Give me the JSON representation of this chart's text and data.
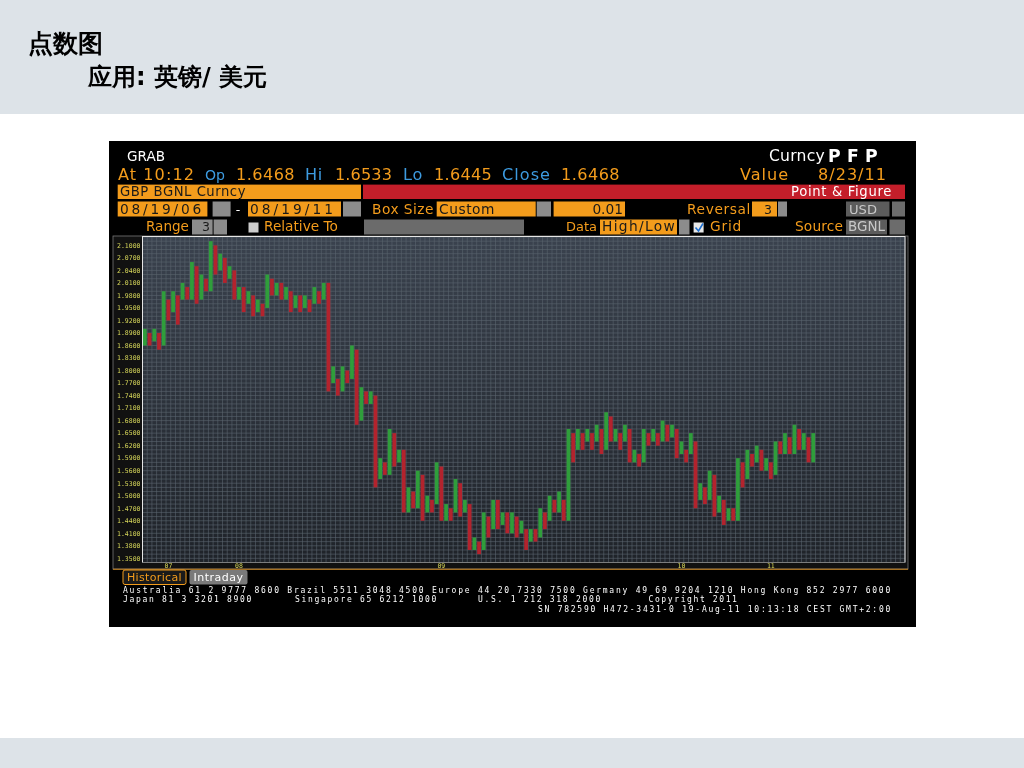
{
  "chart_data": {
    "type": "bar",
    "title": "点数图",
    "subtitle": "应用: 英镑/ 美元",
    "annotations": [
      "GRAB",
      "Curncy",
      "PFP",
      "At 10:12",
      "Op",
      "1.6468",
      "Hi",
      "1.6533",
      "Lo",
      "1.6445",
      "Close",
      "1.6468",
      "Value",
      "8/23/11",
      "GBP BGNL Curncy",
      "Point & Figure",
      "08/19/06",
      "-",
      "08/19/11",
      "Box Size",
      "Custom",
      "0.01",
      "Reversal",
      "3",
      "USD",
      "Range",
      "3",
      "Relative To",
      "Data",
      "High/Low",
      "Grid",
      "Source",
      "BGNL",
      "Historical",
      "Intraday",
      "Australia 61 2 9777 8600 Brazil 5511 3048 4500 Europe 44 20 7330 7500 Germany 49 69 9204 1210 Hong Kong 852 2977 6000",
      "Japan 81 3 3201 8900",
      "Singapore 65 6212 1000",
      "U.S. 1 212 318 2000",
      "Copyright 2011",
      "SN 782590 H472-3431-0 19-Aug-11 10:13:18 CEST GMT+2:00"
    ],
    "categories": [
      null,
      null,
      null,
      null,
      null,
      "07",
      null,
      null,
      null,
      null,
      null,
      null,
      null,
      null,
      null,
      null,
      null,
      null,
      null,
      null,
      "08",
      null,
      null,
      null,
      null,
      null,
      null,
      null,
      null,
      null,
      null,
      null,
      null,
      null,
      null,
      null,
      null,
      null,
      null,
      null,
      null,
      null,
      null,
      null,
      null,
      null,
      null,
      null,
      null,
      null,
      null,
      null,
      null,
      null,
      null,
      null,
      null,
      null,
      null,
      null,
      null,
      null,
      null,
      "09",
      null,
      null,
      null,
      null,
      null,
      null,
      null,
      null,
      null,
      null,
      null,
      null,
      null,
      null,
      null,
      null,
      null,
      null,
      null,
      null,
      null,
      null,
      null,
      null,
      null,
      null,
      null,
      null,
      null,
      null,
      null,
      null,
      null,
      null,
      null,
      null,
      null,
      null,
      null,
      null,
      null,
      null,
      null,
      null,
      null,
      null,
      null,
      null,
      null,
      null,
      "10",
      null,
      null,
      null,
      null,
      null,
      null,
      null,
      null,
      null,
      null,
      null,
      null,
      null,
      null,
      null,
      null,
      null,
      null,
      "11",
      null,
      null,
      null,
      null,
      null,
      null,
      null,
      null,
      null,
      null,
      null,
      null,
      null,
      null,
      null,
      null,
      null,
      null,
      null,
      null,
      null,
      null,
      null,
      null,
      null,
      null,
      null,
      null
    ],
    "base": [
      1.86,
      1.86,
      1.87,
      1.85,
      1.86,
      1.92,
      1.94,
      1.91,
      1.97,
      1.97,
      1.97,
      1.96,
      1.97,
      1.99,
      1.99,
      2.03,
      2.04,
      2.01,
      2.02,
      1.97,
      1.97,
      1.94,
      1.96,
      1.93,
      1.94,
      1.93,
      1.95,
      1.98,
      1.98,
      1.97,
      1.97,
      1.94,
      1.95,
      1.94,
      1.95,
      1.94,
      1.96,
      1.96,
      1.97,
      1.75,
      1.77,
      1.74,
      1.75,
      1.77,
      1.78,
      1.67,
      1.68,
      1.72,
      1.72,
      1.52,
      1.54,
      1.55,
      1.55,
      1.57,
      1.58,
      1.46,
      1.46,
      1.47,
      1.47,
      1.44,
      1.46,
      1.46,
      1.48,
      1.44,
      1.44,
      1.44,
      1.46,
      1.45,
      1.46,
      1.37,
      1.37,
      1.36,
      1.37,
      1.4,
      1.42,
      1.42,
      1.43,
      1.41,
      1.41,
      1.4,
      1.41,
      1.37,
      1.39,
      1.39,
      1.4,
      1.42,
      1.44,
      1.46,
      1.46,
      1.44,
      1.44,
      1.58,
      1.61,
      1.61,
      1.63,
      1.61,
      1.63,
      1.6,
      1.61,
      1.63,
      1.63,
      1.61,
      1.63,
      1.58,
      1.58,
      1.57,
      1.58,
      1.62,
      1.63,
      1.62,
      1.63,
      1.63,
      1.64,
      1.59,
      1.6,
      1.58,
      1.6,
      1.47,
      1.49,
      1.48,
      1.49,
      1.45,
      1.46,
      1.43,
      1.44,
      1.44,
      1.44,
      1.52,
      1.54,
      1.57,
      1.58,
      1.56,
      1.56,
      1.54,
      1.55,
      1.6,
      1.6,
      1.6,
      1.6,
      1.61,
      1.61,
      1.58,
      1.58,
      null,
      null,
      null,
      null,
      null,
      null,
      null,
      null,
      null,
      null,
      null,
      null,
      null,
      null,
      null,
      null,
      null,
      null,
      null
    ],
    "values": [
      0.04,
      0.03,
      0.03,
      0.04,
      0.13,
      0.05,
      0.05,
      0.07,
      0.04,
      0.03,
      0.09,
      0.09,
      0.06,
      0.03,
      0.12,
      0.07,
      0.04,
      0.06,
      0.03,
      0.07,
      0.03,
      0.06,
      0.03,
      0.05,
      0.03,
      0.03,
      0.08,
      0.04,
      0.03,
      0.04,
      0.03,
      0.05,
      0.03,
      0.04,
      0.03,
      0.03,
      0.04,
      0.03,
      0.04,
      0.26,
      0.04,
      0.04,
      0.06,
      0.03,
      0.08,
      0.18,
      0.08,
      0.03,
      0.03,
      0.22,
      0.05,
      0.03,
      0.11,
      0.08,
      0.03,
      0.15,
      0.06,
      0.04,
      0.09,
      0.11,
      0.04,
      0.03,
      0.1,
      0.13,
      0.04,
      0.03,
      0.08,
      0.08,
      0.03,
      0.11,
      0.03,
      0.03,
      0.09,
      0.05,
      0.07,
      0.07,
      0.03,
      0.05,
      0.05,
      0.05,
      0.03,
      0.05,
      0.03,
      0.03,
      0.07,
      0.04,
      0.06,
      0.03,
      0.05,
      0.05,
      0.22,
      0.07,
      0.05,
      0.04,
      0.03,
      0.04,
      0.04,
      0.06,
      0.09,
      0.06,
      0.03,
      0.04,
      0.04,
      0.08,
      0.03,
      0.03,
      0.08,
      0.03,
      0.03,
      0.03,
      0.05,
      0.04,
      0.03,
      0.07,
      0.03,
      0.03,
      0.05,
      0.16,
      0.04,
      0.04,
      0.07,
      0.1,
      0.04,
      0.06,
      0.03,
      0.03,
      0.15,
      0.06,
      0.07,
      0.03,
      0.04,
      0.05,
      0.03,
      0.04,
      0.08,
      0.03,
      0.05,
      0.04,
      0.07,
      0.05,
      0.04,
      0.06,
      0.07,
      null,
      null,
      null,
      null,
      null,
      null,
      null,
      null,
      null,
      null,
      null,
      null,
      null,
      null,
      null,
      null,
      null,
      null,
      null
    ],
    "colors": [
      "#2f9e3b",
      "#b3232d",
      "#2f9e3b",
      "#b3232d",
      "#2f9e3b",
      "#b3232d",
      "#2f9e3b",
      "#b3232d",
      "#2f9e3b",
      "#b3232d",
      "#2f9e3b",
      "#b3232d",
      "#2f9e3b",
      "#b3232d",
      "#2f9e3b",
      "#b3232d",
      "#2f9e3b",
      "#b3232d",
      "#2f9e3b",
      "#b3232d",
      "#2f9e3b",
      "#b3232d",
      "#2f9e3b",
      "#b3232d",
      "#2f9e3b",
      "#b3232d",
      "#2f9e3b",
      "#b3232d",
      "#2f9e3b",
      "#b3232d",
      "#2f9e3b",
      "#b3232d",
      "#2f9e3b",
      "#b3232d",
      "#2f9e3b",
      "#b3232d",
      "#2f9e3b",
      "#b3232d",
      "#2f9e3b",
      "#b3232d",
      "#2f9e3b",
      "#b3232d",
      "#2f9e3b",
      "#b3232d",
      "#2f9e3b",
      "#b3232d",
      "#2f9e3b",
      "#b3232d",
      "#2f9e3b",
      "#b3232d",
      "#2f9e3b",
      "#b3232d",
      "#2f9e3b",
      "#b3232d",
      "#2f9e3b",
      "#b3232d",
      "#2f9e3b",
      "#b3232d",
      "#2f9e3b",
      "#b3232d",
      "#2f9e3b",
      "#b3232d",
      "#2f9e3b",
      "#b3232d",
      "#2f9e3b",
      "#b3232d",
      "#2f9e3b",
      "#b3232d",
      "#2f9e3b",
      "#b3232d",
      "#2f9e3b",
      "#b3232d",
      "#2f9e3b",
      "#b3232d",
      "#2f9e3b",
      "#b3232d",
      "#2f9e3b",
      "#b3232d",
      "#2f9e3b",
      "#b3232d",
      "#2f9e3b",
      "#b3232d",
      "#2f9e3b",
      "#b3232d",
      "#2f9e3b",
      "#b3232d",
      "#2f9e3b",
      "#b3232d",
      "#2f9e3b",
      "#b3232d",
      "#2f9e3b",
      "#b3232d",
      "#2f9e3b",
      "#b3232d",
      "#2f9e3b",
      "#b3232d",
      "#2f9e3b",
      "#b3232d",
      "#2f9e3b",
      "#b3232d",
      "#2f9e3b",
      "#b3232d",
      "#2f9e3b",
      "#b3232d",
      "#2f9e3b",
      "#b3232d",
      "#2f9e3b",
      "#b3232d",
      "#2f9e3b",
      "#b3232d",
      "#2f9e3b",
      "#b3232d",
      "#2f9e3b",
      "#b3232d",
      "#2f9e3b",
      "#b3232d",
      "#2f9e3b",
      "#b3232d",
      "#2f9e3b",
      "#b3232d",
      "#2f9e3b",
      "#b3232d",
      "#2f9e3b",
      "#b3232d",
      "#2f9e3b",
      "#b3232d",
      "#2f9e3b",
      "#b3232d",
      "#2f9e3b",
      "#b3232d",
      "#2f9e3b",
      "#b3232d",
      "#2f9e3b",
      "#b3232d",
      "#2f9e3b",
      "#b3232d",
      "#2f9e3b",
      "#b3232d",
      "#2f9e3b",
      "#b3232d",
      "#2f9e3b",
      "#b3232d",
      "#2f9e3b",
      null,
      null,
      null,
      null,
      null,
      null,
      null,
      null,
      null,
      null,
      null,
      null,
      null,
      null,
      null,
      null,
      null,
      null,
      null
    ],
    "ylim": [
      1.34,
      2.12
    ],
    "yticks": [
      {
        "value": 1.34,
        "label": null
      },
      {
        "value": 1.35,
        "label": "1.3500"
      },
      {
        "value": 1.36,
        "label": null
      },
      {
        "value": 1.37,
        "label": null
      },
      {
        "value": 1.38,
        "label": "1.3800"
      },
      {
        "value": 1.39,
        "label": null
      },
      {
        "value": 1.4,
        "label": null
      },
      {
        "value": 1.41,
        "label": "1.4100"
      },
      {
        "value": 1.42,
        "label": null
      },
      {
        "value": 1.43,
        "label": null
      },
      {
        "value": 1.44,
        "label": "1.4400"
      },
      {
        "value": 1.45,
        "label": null
      },
      {
        "value": 1.46,
        "label": null
      },
      {
        "value": 1.47,
        "label": "1.4700"
      },
      {
        "value": 1.48,
        "label": null
      },
      {
        "value": 1.49,
        "label": null
      },
      {
        "value": 1.5,
        "label": "1.5000"
      },
      {
        "value": 1.51,
        "label": null
      },
      {
        "value": 1.52,
        "label": null
      },
      {
        "value": 1.53,
        "label": "1.5300"
      },
      {
        "value": 1.54,
        "label": null
      },
      {
        "value": 1.55,
        "label": null
      },
      {
        "value": 1.56,
        "label": "1.5600"
      },
      {
        "value": 1.57,
        "label": null
      },
      {
        "value": 1.58,
        "label": null
      },
      {
        "value": 1.59,
        "label": "1.5900"
      },
      {
        "value": 1.6,
        "label": null
      },
      {
        "value": 1.61,
        "label": null
      },
      {
        "value": 1.62,
        "label": "1.6200"
      },
      {
        "value": 1.63,
        "label": null
      },
      {
        "value": 1.64,
        "label": null
      },
      {
        "value": 1.65,
        "label": "1.6500"
      },
      {
        "value": 1.66,
        "label": null
      },
      {
        "value": 1.67,
        "label": null
      },
      {
        "value": 1.68,
        "label": "1.6800"
      },
      {
        "value": 1.69,
        "label": null
      },
      {
        "value": 1.7,
        "label": null
      },
      {
        "value": 1.71,
        "label": "1.7100"
      },
      {
        "value": 1.72,
        "label": null
      },
      {
        "value": 1.73,
        "label": null
      },
      {
        "value": 1.74,
        "label": "1.7400"
      },
      {
        "value": 1.75,
        "label": null
      },
      {
        "value": 1.76,
        "label": null
      },
      {
        "value": 1.77,
        "label": "1.7700"
      },
      {
        "value": 1.78,
        "label": null
      },
      {
        "value": 1.79,
        "label": null
      },
      {
        "value": 1.8,
        "label": "1.8000"
      },
      {
        "value": 1.81,
        "label": null
      },
      {
        "value": 1.82,
        "label": null
      },
      {
        "value": 1.83,
        "label": "1.8300"
      },
      {
        "value": 1.84,
        "label": null
      },
      {
        "value": 1.85,
        "label": null
      },
      {
        "value": 1.86,
        "label": "1.8600"
      },
      {
        "value": 1.87,
        "label": null
      },
      {
        "value": 1.88,
        "label": null
      },
      {
        "value": 1.89,
        "label": "1.8900"
      },
      {
        "value": 1.9,
        "label": null
      },
      {
        "value": 1.91,
        "label": null
      },
      {
        "value": 1.92,
        "label": "1.9200"
      },
      {
        "value": 1.93,
        "label": null
      },
      {
        "value": 1.94,
        "label": null
      },
      {
        "value": 1.95,
        "label": "1.9500"
      },
      {
        "value": 1.96,
        "label": null
      },
      {
        "value": 1.97,
        "label": null
      },
      {
        "value": 1.98,
        "label": "1.9800"
      },
      {
        "value": 1.99,
        "label": null
      },
      {
        "value": 2.0,
        "label": null
      },
      {
        "value": 2.01,
        "label": "2.0100"
      },
      {
        "value": 2.02,
        "label": null
      },
      {
        "value": 2.03,
        "label": null
      },
      {
        "value": 2.04,
        "label": "2.0400"
      },
      {
        "value": 2.05,
        "label": null
      },
      {
        "value": 2.06,
        "label": null
      },
      {
        "value": 2.07,
        "label": "2.0700"
      },
      {
        "value": 2.08,
        "label": null
      },
      {
        "value": 2.09,
        "label": null
      },
      {
        "value": 2.1,
        "label": "2.1000"
      },
      {
        "value": 2.11,
        "label": null
      },
      {
        "value": 2.12,
        "label": null
      }
    ],
    "grid": true
  }
}
